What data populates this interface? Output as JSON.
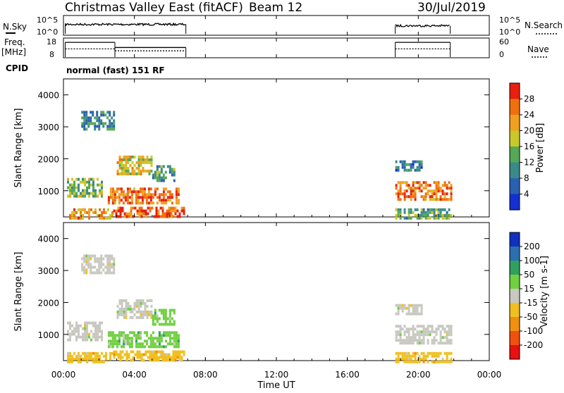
{
  "header": {
    "title": "Christmas Valley East (fitACF)",
    "beam": "Beam 12",
    "date": "30/Jul/2019"
  },
  "labels": {
    "nsky": "N.Sky",
    "nsearch": "N.Search",
    "freq": "Freq.",
    "freq_unit": "[MHz]",
    "nave": "Nave",
    "cpid": "CPID",
    "cpid_value": "normal (fast) 151 RF"
  },
  "chart_data": [
    {
      "type": "line",
      "name": "noise",
      "left_ticks": [
        "10^5",
        "10^0"
      ],
      "right_ticks": [
        "10^5",
        "10^0"
      ],
      "xlim": [
        "00:00",
        "24:00"
      ],
      "intervals": [
        {
          "start_h": 0.1,
          "end_h": 6.9,
          "value_level": 0.55
        },
        {
          "start_h": 18.7,
          "end_h": 21.8,
          "value_level": 0.48
        }
      ]
    },
    {
      "type": "line",
      "name": "frequency_and_nave",
      "left_ticks": [
        "18",
        "8"
      ],
      "right_ticks": [
        "60",
        "0"
      ],
      "segments": [
        {
          "start_h": 0.1,
          "end_h": 2.9,
          "freq_level": 0.78,
          "nave_level": 0.45
        },
        {
          "start_h": 2.9,
          "end_h": 6.9,
          "freq_level": 0.52,
          "nave_level": 0.35
        },
        {
          "start_h": 18.7,
          "end_h": 21.8,
          "freq_level": 0.78,
          "nave_level": 0.45
        }
      ]
    },
    {
      "type": "heatmap",
      "name": "power",
      "ylabel": "Slant Range [km]",
      "ylim": [
        180,
        4500
      ],
      "yticks": [
        1000,
        2000,
        3000,
        4000
      ],
      "colorbar_label": "Power [dB]",
      "colorbar_ticks": [
        "4",
        "8",
        "12",
        "16",
        "20",
        "24",
        "28"
      ],
      "colorbar_colors": [
        "#1530d0",
        "#2a60b0",
        "#3a8a8a",
        "#55a855",
        "#c8c82a",
        "#f0a020",
        "#f07010",
        "#e82010"
      ],
      "echo_regions": [
        {
          "t0": 0.2,
          "t1": 2.8,
          "r0": 180,
          "r1": 450,
          "intensity": 0.75
        },
        {
          "t0": 2.8,
          "t1": 6.8,
          "r0": 180,
          "r1": 500,
          "intensity": 0.9
        },
        {
          "t0": 0.2,
          "t1": 2.2,
          "r0": 800,
          "r1": 1400,
          "intensity": 0.45
        },
        {
          "t0": 2.5,
          "t1": 6.5,
          "r0": 650,
          "r1": 1100,
          "intensity": 0.85
        },
        {
          "t0": 3.0,
          "t1": 5.0,
          "r0": 1500,
          "r1": 2100,
          "intensity": 0.6
        },
        {
          "t0": 5.0,
          "t1": 6.3,
          "r0": 1300,
          "r1": 1800,
          "intensity": 0.35
        },
        {
          "t0": 1.0,
          "t1": 2.8,
          "r0": 2900,
          "r1": 3500,
          "intensity": 0.3
        },
        {
          "t0": 18.7,
          "t1": 21.8,
          "r0": 700,
          "r1": 1300,
          "intensity": 0.8
        },
        {
          "t0": 18.7,
          "t1": 21.8,
          "r0": 180,
          "r1": 450,
          "intensity": 0.4
        },
        {
          "t0": 18.7,
          "t1": 20.2,
          "r0": 1600,
          "r1": 1950,
          "intensity": 0.25
        }
      ]
    },
    {
      "type": "heatmap",
      "name": "velocity",
      "ylabel": "Slant Range [km]",
      "ylim": [
        180,
        4500
      ],
      "yticks": [
        1000,
        2000,
        3000,
        4000
      ],
      "colorbar_label": "Velocity [m s-1]",
      "colorbar_ticks": [
        "200",
        "100",
        "50",
        "15",
        "-15",
        "-50",
        "-100",
        "-200"
      ],
      "colorbar_colors": [
        "#1030c0",
        "#2a70b0",
        "#30a060",
        "#70d040",
        "#c8c8c0",
        "#f0c020",
        "#f09010",
        "#f05010",
        "#e81010"
      ],
      "echo_regions": [
        {
          "t0": 0.2,
          "t1": 2.8,
          "r0": 180,
          "r1": 450,
          "color_index": 5
        },
        {
          "t0": 2.8,
          "t1": 6.8,
          "r0": 180,
          "r1": 500,
          "color_index": 5
        },
        {
          "t0": 0.2,
          "t1": 2.2,
          "r0": 800,
          "r1": 1400,
          "color_index": 4
        },
        {
          "t0": 2.5,
          "t1": 6.5,
          "r0": 650,
          "r1": 1100,
          "color_index": 3
        },
        {
          "t0": 3.0,
          "t1": 5.0,
          "r0": 1500,
          "r1": 2100,
          "color_index": 4
        },
        {
          "t0": 5.0,
          "t1": 6.3,
          "r0": 1300,
          "r1": 1800,
          "color_index": 3
        },
        {
          "t0": 1.0,
          "t1": 2.8,
          "r0": 2900,
          "r1": 3500,
          "color_index": 4
        },
        {
          "t0": 18.7,
          "t1": 21.8,
          "r0": 700,
          "r1": 1300,
          "color_index": 4
        },
        {
          "t0": 18.7,
          "t1": 21.8,
          "r0": 180,
          "r1": 450,
          "color_index": 5
        },
        {
          "t0": 18.7,
          "t1": 20.2,
          "r0": 1600,
          "r1": 1950,
          "color_index": 4
        }
      ]
    }
  ],
  "x_axis": {
    "ticks": [
      "00:00",
      "04:00",
      "08:00",
      "12:00",
      "16:00",
      "20:00",
      "00:00"
    ],
    "label": "Time UT"
  }
}
